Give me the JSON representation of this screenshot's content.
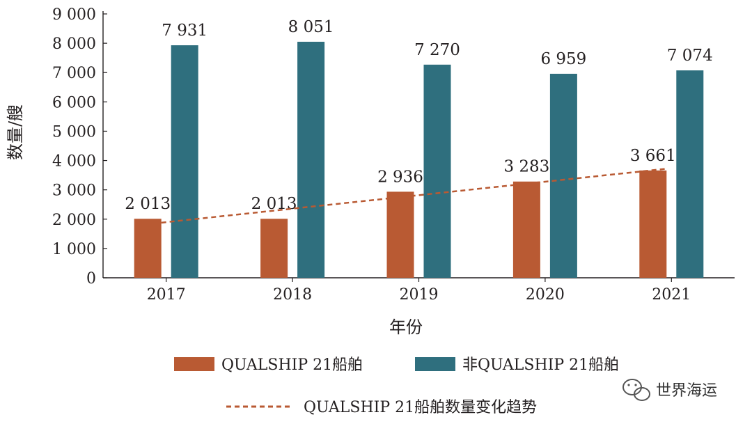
{
  "chart_data": {
    "type": "bar",
    "categories": [
      "2017",
      "2018",
      "2019",
      "2020",
      "2021"
    ],
    "series": [
      {
        "name": "QUALSHIP 21船舶",
        "values": [
          2013,
          2013,
          2936,
          3283,
          3661
        ],
        "color": "#b95a33"
      },
      {
        "name": "非QUALSHIP 21船舶",
        "values": [
          7931,
          8051,
          7270,
          6959,
          7074
        ],
        "color": "#2f6f7e"
      }
    ],
    "data_labels": {
      "QUALSHIP 21船舶": [
        "2 013",
        "2 013",
        "2 936",
        "3 283",
        "3 661"
      ],
      "非QUALSHIP 21船舶": [
        "7 931",
        "8 051",
        "7 270",
        "6 959",
        "7 074"
      ]
    },
    "trend": {
      "name": "QUALSHIP 21船舶数量变化趋势",
      "from": 1880,
      "to": 3720,
      "color": "#b95a33",
      "style": "dashed"
    },
    "xlabel": "年份",
    "ylabel": "数量/艘",
    "ylim": [
      0,
      9000
    ],
    "yticks": [
      0,
      1000,
      2000,
      3000,
      4000,
      5000,
      6000,
      7000,
      8000,
      9000
    ],
    "ytick_labels": [
      "0",
      "1 000",
      "2 000",
      "3 000",
      "4 000",
      "5 000",
      "6 000",
      "7 000",
      "8 000",
      "9 000"
    ],
    "grid": false,
    "legend": "bottom"
  },
  "watermark": {
    "text": "世界海运",
    "icon": "wechat-icon"
  }
}
